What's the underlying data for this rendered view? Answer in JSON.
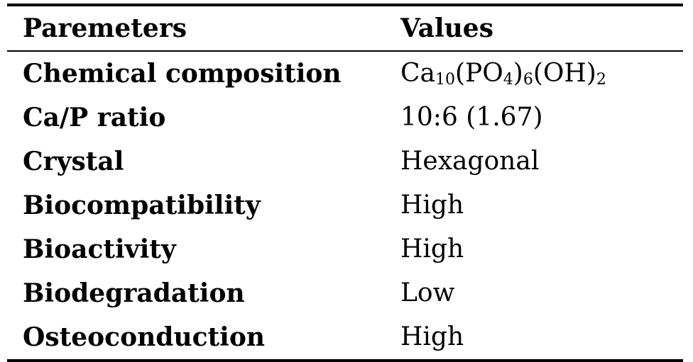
{
  "table": {
    "headers": [
      "Paremeters",
      "Values"
    ],
    "rows": [
      {
        "parameter": "Chemical composition",
        "value": "Ca10(PO4)6(OH)2",
        "value_parts": [
          {
            "text": "Ca",
            "sub": "10"
          },
          {
            "text": "(PO",
            "sub": "4"
          },
          {
            "text": ")",
            "sub": "6"
          },
          {
            "text": "(OH)",
            "sub": "2"
          }
        ]
      },
      {
        "parameter": "Ca/P ratio",
        "value": "10:6 (1.67)"
      },
      {
        "parameter": "Crystal",
        "value": "Hexagonal"
      },
      {
        "parameter": "Biocompatibility",
        "value": "High"
      },
      {
        "parameter": "Bioactivity",
        "value": "High"
      },
      {
        "parameter": "Biodegradation",
        "value": "Low"
      },
      {
        "parameter": "Osteoconduction",
        "value": "High"
      }
    ]
  }
}
